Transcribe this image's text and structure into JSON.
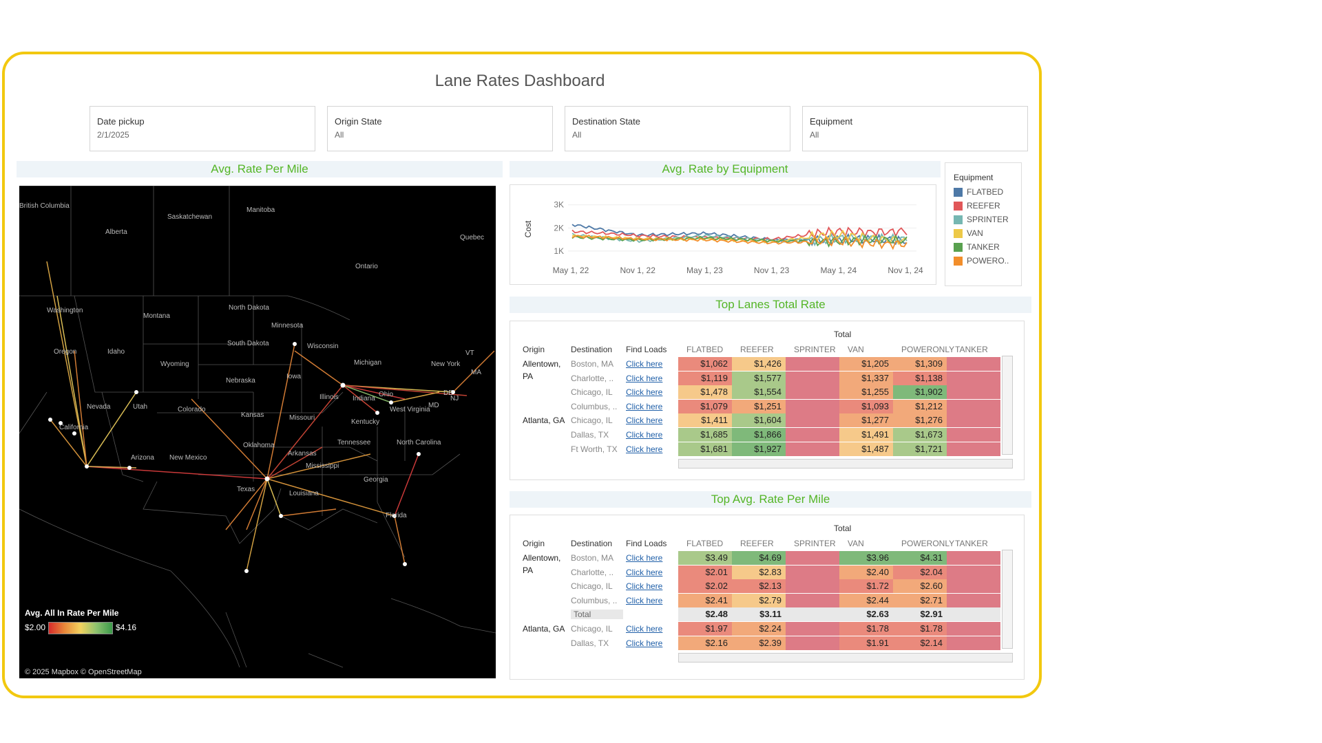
{
  "dashboard": {
    "title": "Lane Rates Dashboard"
  },
  "filters": [
    {
      "label": "Date pickup",
      "value": "2/1/2025"
    },
    {
      "label": "Origin State",
      "value": "All"
    },
    {
      "label": "Destination State",
      "value": "All"
    },
    {
      "label": "Equipment",
      "value": "All"
    }
  ],
  "sections": {
    "map_title": "Avg. Rate Per Mile",
    "line_title": "Avg. Rate by Equipment",
    "top_lanes_title": "Top Lanes Total Rate",
    "top_rpm_title": "Top Avg. Rate Per Mile"
  },
  "map": {
    "labels": [
      "British Columbia",
      "Alberta",
      "Saskatchewan",
      "Manitoba",
      "Quebec",
      "Ontario",
      "Washington",
      "Oregon",
      "Idaho",
      "Montana",
      "North Dakota",
      "South Dakota",
      "Wyoming",
      "Minnesota",
      "Wisconsin",
      "Michigan",
      "Iowa",
      "Nebraska",
      "Nevada",
      "Utah",
      "Colorado",
      "Kansas",
      "Missouri",
      "Illinois",
      "Indiana",
      "Ohio",
      "New York",
      "California",
      "Arizona",
      "New Mexico",
      "Oklahoma",
      "Arkansas",
      "Kentucky",
      "West Virginia",
      "Tennessee",
      "North Carolina",
      "Mississippi",
      "Texas",
      "Louisiana",
      "Georgia",
      "Florida",
      "VT",
      "MA",
      "MD",
      "DE",
      "NJ"
    ],
    "legend_title": "Avg. All In Rate Per Mile",
    "legend_min": "$2.00",
    "legend_max": "$4.16",
    "copyright": "© 2025 Mapbox © OpenStreetMap"
  },
  "line_chart": {
    "ylabel": "Cost",
    "yticks": [
      "3K",
      "2K",
      "1K"
    ],
    "xticks": [
      "May 1, 22",
      "Nov 1, 22",
      "May 1, 23",
      "Nov 1, 23",
      "May 1, 24",
      "Nov 1, 24"
    ]
  },
  "chart_data": {
    "type": "line",
    "ylabel": "Cost",
    "ylim": [
      700,
      3200
    ],
    "x": [
      "May 1, 22",
      "Nov 1, 22",
      "May 1, 23",
      "Nov 1, 23",
      "May 1, 24",
      "Nov 1, 24"
    ],
    "series": [
      {
        "name": "FLATBED",
        "color": "#4e79a7",
        "values": [
          2150,
          1700,
          1750,
          1500,
          1500,
          1400
        ]
      },
      {
        "name": "REEFER",
        "color": "#e15759",
        "values": [
          1850,
          1650,
          1600,
          1500,
          1850,
          1900
        ]
      },
      {
        "name": "SPRINTER",
        "color": "#76b7b2",
        "values": [
          1700,
          1450,
          1650,
          1450,
          1550,
          1450
        ]
      },
      {
        "name": "VAN",
        "color": "#edc948",
        "values": [
          1650,
          1500,
          1550,
          1400,
          1700,
          1500
        ]
      },
      {
        "name": "TANKER",
        "color": "#59a14f",
        "values": [
          1600,
          1500,
          1550,
          1450,
          1450,
          1400
        ]
      },
      {
        "name": "POWERO..",
        "color": "#f28e2b",
        "values": [
          1650,
          1500,
          1500,
          1350,
          1400,
          1350
        ]
      }
    ]
  },
  "eq_legend": {
    "title": "Equipment",
    "items": [
      {
        "name": "FLATBED",
        "color": "#4e79a7"
      },
      {
        "name": "REEFER",
        "color": "#e15759"
      },
      {
        "name": "SPRINTER",
        "color": "#76b7b2"
      },
      {
        "name": "VAN",
        "color": "#edc948"
      },
      {
        "name": "TANKER",
        "color": "#59a14f"
      },
      {
        "name": "POWERO..",
        "color": "#f28e2b"
      }
    ]
  },
  "table_headers": {
    "origin": "Origin",
    "destination": "Destination",
    "find_loads": "Find Loads",
    "total": "Total",
    "cols": [
      "FLATBED",
      "REEFER",
      "SPRINTER",
      "VAN",
      "POWERONLY",
      "TANKER"
    ]
  },
  "top_lanes": {
    "rows": [
      {
        "origin": "Allentown, PA",
        "dest": "Boston, MA",
        "link": "Click here",
        "vals": [
          "$1,062",
          "$1,426",
          "",
          "$1,205",
          "$1,309",
          ""
        ]
      },
      {
        "origin": "",
        "dest": "Charlotte, ..",
        "link": "Click here",
        "vals": [
          "$1,119",
          "$1,577",
          "",
          "$1,337",
          "$1,138",
          ""
        ]
      },
      {
        "origin": "",
        "dest": "Chicago, IL",
        "link": "Click here",
        "vals": [
          "$1,478",
          "$1,554",
          "",
          "$1,255",
          "$1,902",
          ""
        ]
      },
      {
        "origin": "",
        "dest": "Columbus, ..",
        "link": "Click here",
        "vals": [
          "$1,079",
          "$1,251",
          "",
          "$1,093",
          "$1,212",
          ""
        ]
      },
      {
        "origin": "Atlanta, GA",
        "dest": "Chicago, IL",
        "link": "Click here",
        "vals": [
          "$1,411",
          "$1,604",
          "",
          "$1,277",
          "$1,276",
          ""
        ]
      },
      {
        "origin": "",
        "dest": "Dallas, TX",
        "link": "Click here",
        "vals": [
          "$1,685",
          "$1,866",
          "",
          "$1,491",
          "$1,673",
          ""
        ]
      },
      {
        "origin": "",
        "dest": "Ft Worth, TX",
        "link": "Click here",
        "vals": [
          "$1,681",
          "$1,927",
          "",
          "$1,487",
          "$1,721",
          ""
        ]
      }
    ]
  },
  "top_rpm": {
    "rows": [
      {
        "origin": "Allentown, PA",
        "dest": "Boston, MA",
        "link": "Click here",
        "vals": [
          "$3.49",
          "$4.69",
          "",
          "$3.96",
          "$4.31",
          ""
        ]
      },
      {
        "origin": "",
        "dest": "Charlotte, ..",
        "link": "Click here",
        "vals": [
          "$2.01",
          "$2.83",
          "",
          "$2.40",
          "$2.04",
          ""
        ]
      },
      {
        "origin": "",
        "dest": "Chicago, IL",
        "link": "Click here",
        "vals": [
          "$2.02",
          "$2.13",
          "",
          "$1.72",
          "$2.60",
          ""
        ]
      },
      {
        "origin": "",
        "dest": "Columbus, ..",
        "link": "Click here",
        "vals": [
          "$2.41",
          "$2.79",
          "",
          "$2.44",
          "$2.71",
          ""
        ]
      },
      {
        "origin": "",
        "dest": "Total",
        "link": "",
        "vals": [
          "$2.48",
          "$3.11",
          "",
          "$2.63",
          "$2.91",
          ""
        ]
      },
      {
        "origin": "Atlanta, GA",
        "dest": "Chicago, IL",
        "link": "Click here",
        "vals": [
          "$1.97",
          "$2.24",
          "",
          "$1.78",
          "$1.78",
          ""
        ]
      },
      {
        "origin": "",
        "dest": "Dallas, TX",
        "link": "Click here",
        "vals": [
          "$2.16",
          "$2.39",
          "",
          "$1.91",
          "$2.14",
          ""
        ]
      }
    ]
  },
  "colors": {
    "accent": "#f2c80f",
    "section_title": "#54b526",
    "link": "#1f5fa8"
  }
}
